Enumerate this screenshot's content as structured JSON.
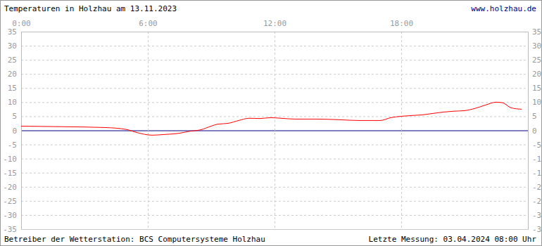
{
  "chart_data": {
    "type": "line",
    "title": "Temperaturen in Holzhau am 13.11.2023",
    "annotations": [
      "www.holzhau.de",
      "Betreiber der Wetterstation: BCS Computersysteme Holzhau",
      "Letzte Messung: 03.04.2024 08:00 Uhr"
    ],
    "x": [
      0,
      2,
      4,
      5,
      5.5,
      6.2,
      6.7,
      7.5,
      8,
      8.5,
      9,
      9.3,
      9.8,
      10.3,
      10.8,
      11.3,
      11.8,
      12.3,
      13,
      14,
      15,
      16,
      17,
      17.5,
      18,
      19,
      20,
      20.5,
      21,
      21.5,
      22,
      22.5,
      22.8,
      23.2,
      23.7
    ],
    "values": [
      1.5,
      1.3,
      1.0,
      0.3,
      -0.8,
      -1.7,
      -1.5,
      -1.0,
      -0.3,
      0.2,
      1.5,
      2.2,
      2.5,
      3.5,
      4.3,
      4.2,
      4.5,
      4.3,
      4.0,
      4.0,
      3.8,
      3.5,
      3.5,
      4.5,
      5.0,
      5.5,
      6.5,
      6.8,
      7.0,
      7.8,
      9.0,
      10.0,
      9.8,
      8.0,
      7.5
    ],
    "color": "#ff0000",
    "xlim": [
      0,
      24
    ],
    "xticks": [
      {
        "value": 0,
        "label": "0:00"
      },
      {
        "value": 6,
        "label": "6:00"
      },
      {
        "value": 12,
        "label": "12:00"
      },
      {
        "value": 18,
        "label": "18:00"
      }
    ],
    "ylim": [
      -35,
      35
    ],
    "yticks": [
      35,
      30,
      25,
      20,
      15,
      10,
      5,
      0,
      -5,
      -10,
      -15,
      -20,
      -25,
      -30,
      -35
    ],
    "grid": true
  }
}
